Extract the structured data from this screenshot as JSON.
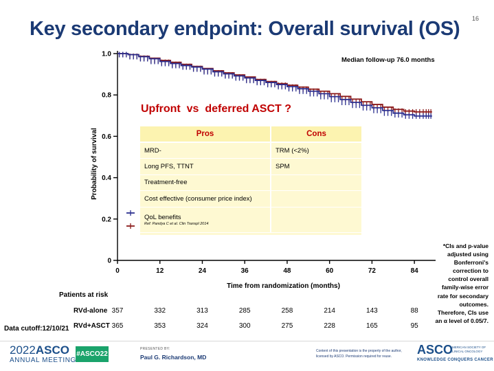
{
  "slide": {
    "number": "16",
    "title": "Key secondary endpoint: Overall survival (OS)",
    "followup": "Median follow-up 76.0 months",
    "question": "Upfront  vs  deferred ASCT ?"
  },
  "table": {
    "headers": [
      "Pros",
      "Cons"
    ],
    "rows": [
      {
        "pro": "MRD-",
        "con": "TRM (<2%)"
      },
      {
        "pro": "Long PFS, TTNT",
        "con": "SPM"
      },
      {
        "pro": "Treatment-free",
        "con": ""
      },
      {
        "pro": "Cost effective (consumer price index)",
        "con": ""
      },
      {
        "pro": "QoL benefits",
        "ref": "Ref: Pandya C et al. Clin Transpl 2014",
        "con": ""
      }
    ]
  },
  "side_note": "*CIs and p-value adjusted using Bonferroni's correction to control overall family-wise error rate for secondary outcomes. Therefore, CIs use an α level of 0.05/7.",
  "risk": {
    "title": "Patients at risk",
    "cutoff": "Data cutoff:12/10/21",
    "rows": [
      {
        "label": "RVd-alone",
        "values": [
          "357",
          "332",
          "313",
          "285",
          "258",
          "214",
          "143",
          "88"
        ]
      },
      {
        "label": "RVd+ASCT",
        "values": [
          "365",
          "353",
          "324",
          "300",
          "275",
          "228",
          "165",
          "95"
        ]
      }
    ]
  },
  "footer": {
    "year": "2022",
    "asco": "ASCO",
    "annual": "ANNUAL MEETING",
    "hashtag": "#ASCO22",
    "presented_by": "PRESENTED BY:",
    "presenter": "Paul G. Richardson, MD",
    "rights": "Content of this presentation is the property of the author, licensed by ASCO. Permission required for reuse.",
    "logo": "ASCO",
    "society": "AMERICAN SOCIETY OF CLINICAL ONCOLOGY",
    "tagline": "KNOWLEDGE CONQUERS CANCER"
  },
  "chart_data": {
    "type": "line",
    "xlabel": "Time from randomization (months)",
    "ylabel": "Probability of survival",
    "xlim": [
      0,
      90
    ],
    "ylim": [
      0,
      1.0
    ],
    "x_ticks": [
      0,
      12,
      24,
      36,
      48,
      60,
      72,
      84
    ],
    "y_ticks": [
      "0",
      "0.2",
      "0.4",
      "0.6",
      "0.8",
      "1.0"
    ],
    "y_tick_values": [
      0,
      0.2,
      0.4,
      0.6,
      0.8,
      1.0
    ],
    "colors": {
      "rvd_alone": "#2b2f8f",
      "rvd_asct": "#8b1a1a"
    },
    "series": [
      {
        "key": "rvd_alone",
        "x": [
          0,
          3,
          6,
          9,
          12,
          15,
          18,
          21,
          24,
          27,
          30,
          33,
          36,
          39,
          42,
          45,
          48,
          51,
          54,
          57,
          60,
          63,
          66,
          69,
          72,
          75,
          78,
          81,
          84,
          87,
          89
        ],
        "y": [
          1.0,
          0.995,
          0.985,
          0.975,
          0.962,
          0.952,
          0.942,
          0.935,
          0.925,
          0.912,
          0.902,
          0.892,
          0.882,
          0.87,
          0.86,
          0.85,
          0.84,
          0.83,
          0.818,
          0.806,
          0.792,
          0.778,
          0.764,
          0.75,
          0.738,
          0.725,
          0.712,
          0.704,
          0.698,
          0.698,
          0.698
        ]
      },
      {
        "key": "rvd_asct",
        "x": [
          0,
          3,
          6,
          9,
          12,
          15,
          18,
          21,
          24,
          27,
          30,
          33,
          36,
          39,
          42,
          45,
          48,
          51,
          54,
          57,
          60,
          63,
          66,
          69,
          72,
          75,
          78,
          81,
          84,
          87,
          89
        ],
        "y": [
          1.0,
          0.995,
          0.987,
          0.978,
          0.967,
          0.958,
          0.948,
          0.938,
          0.928,
          0.917,
          0.907,
          0.897,
          0.887,
          0.875,
          0.865,
          0.855,
          0.847,
          0.838,
          0.828,
          0.818,
          0.806,
          0.793,
          0.78,
          0.767,
          0.754,
          0.741,
          0.73,
          0.722,
          0.718,
          0.718,
          0.718
        ]
      }
    ]
  }
}
